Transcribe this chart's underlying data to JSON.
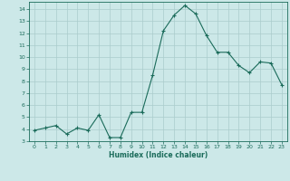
{
  "x": [
    0,
    1,
    2,
    3,
    4,
    5,
    6,
    7,
    8,
    9,
    10,
    11,
    12,
    13,
    14,
    15,
    16,
    17,
    18,
    19,
    20,
    21,
    22,
    23
  ],
  "y": [
    3.9,
    4.1,
    4.3,
    3.6,
    4.1,
    3.9,
    5.2,
    3.3,
    3.3,
    5.4,
    5.4,
    8.5,
    12.2,
    13.5,
    14.3,
    13.6,
    11.8,
    10.4,
    10.4,
    9.3,
    8.7,
    9.6,
    9.5,
    7.7
  ],
  "title": "",
  "xlabel": "Humidex (Indice chaleur)",
  "ylabel": "",
  "xlim": [
    -0.5,
    23.5
  ],
  "ylim": [
    3,
    14.6
  ],
  "yticks": [
    3,
    4,
    5,
    6,
    7,
    8,
    9,
    10,
    11,
    12,
    13,
    14
  ],
  "xticks": [
    0,
    1,
    2,
    3,
    4,
    5,
    6,
    7,
    8,
    9,
    10,
    11,
    12,
    13,
    14,
    15,
    16,
    17,
    18,
    19,
    20,
    21,
    22,
    23
  ],
  "bg_color": "#cce8e8",
  "grid_color": "#aacccc",
  "line_color": "#1a6b5a",
  "marker_color": "#1a6b5a",
  "axis_label_color": "#1a6b5a",
  "tick_label_color": "#1a6b5a"
}
